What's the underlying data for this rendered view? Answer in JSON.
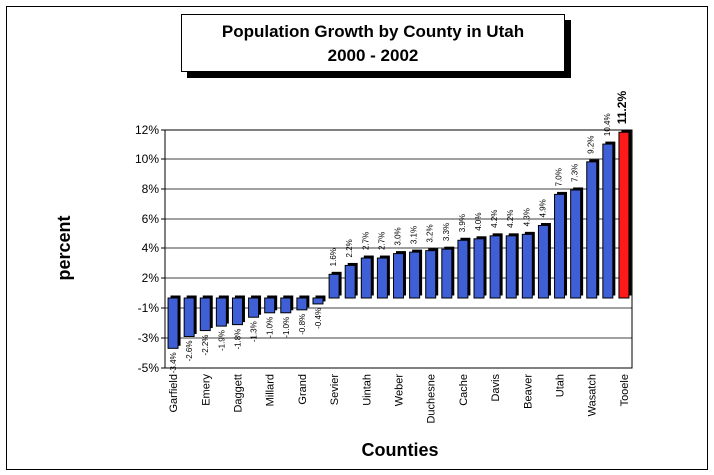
{
  "chart_data": {
    "type": "bar",
    "title": "Population Growth by County in Utah",
    "subtitle": "2000 - 2002",
    "xlabel": "Counties",
    "ylabel": "percent",
    "yticks": [
      "-5%",
      "-3%",
      "-1%",
      "2%",
      "4%",
      "6%",
      "8%",
      "10%",
      "12%"
    ],
    "categories": [
      "Garfield",
      "",
      "Emery",
      "",
      "Daggett",
      "",
      "Millard",
      "",
      "Grand",
      "",
      "Sevier",
      "",
      "Uintah",
      "",
      "Weber",
      "",
      "Duchesne",
      "",
      "Cache",
      "",
      "Davis",
      "",
      "Beaver",
      "",
      "Utah",
      "",
      "Wasatch",
      "",
      "Tooele"
    ],
    "values": [
      -3.4,
      -2.6,
      -2.2,
      -1.9,
      -1.8,
      -1.3,
      -1.0,
      -1.0,
      -0.8,
      -0.4,
      1.6,
      2.2,
      2.7,
      2.7,
      3.0,
      3.1,
      3.2,
      3.3,
      3.9,
      4.0,
      4.2,
      4.2,
      4.3,
      4.9,
      7.0,
      7.3,
      9.2,
      10.4,
      11.2
    ],
    "data_labels": [
      "-3.4%",
      "-2.6%",
      "-2.2%",
      "-1.9%",
      "-1.8%",
      "-1.3%",
      "-1.0%",
      "-1.0%",
      "-0.8%",
      "-0.4%",
      "1.6%",
      "2.2%",
      "2.7%",
      "2.7%",
      "3.0%",
      "3.1%",
      "3.2%",
      "3.3%",
      "3.9%",
      "4.0%",
      "4.2%",
      "4.2%",
      "4.3%",
      "4.9%",
      "7.0%",
      "7.3%",
      "9.2%",
      "10.4%",
      "11.2%"
    ],
    "highlight_index": 28,
    "colors": {
      "bar": "#3f5fd6",
      "highlight": "#ff1a1a",
      "grid": "#000000"
    },
    "grid": true,
    "legend": "none"
  }
}
